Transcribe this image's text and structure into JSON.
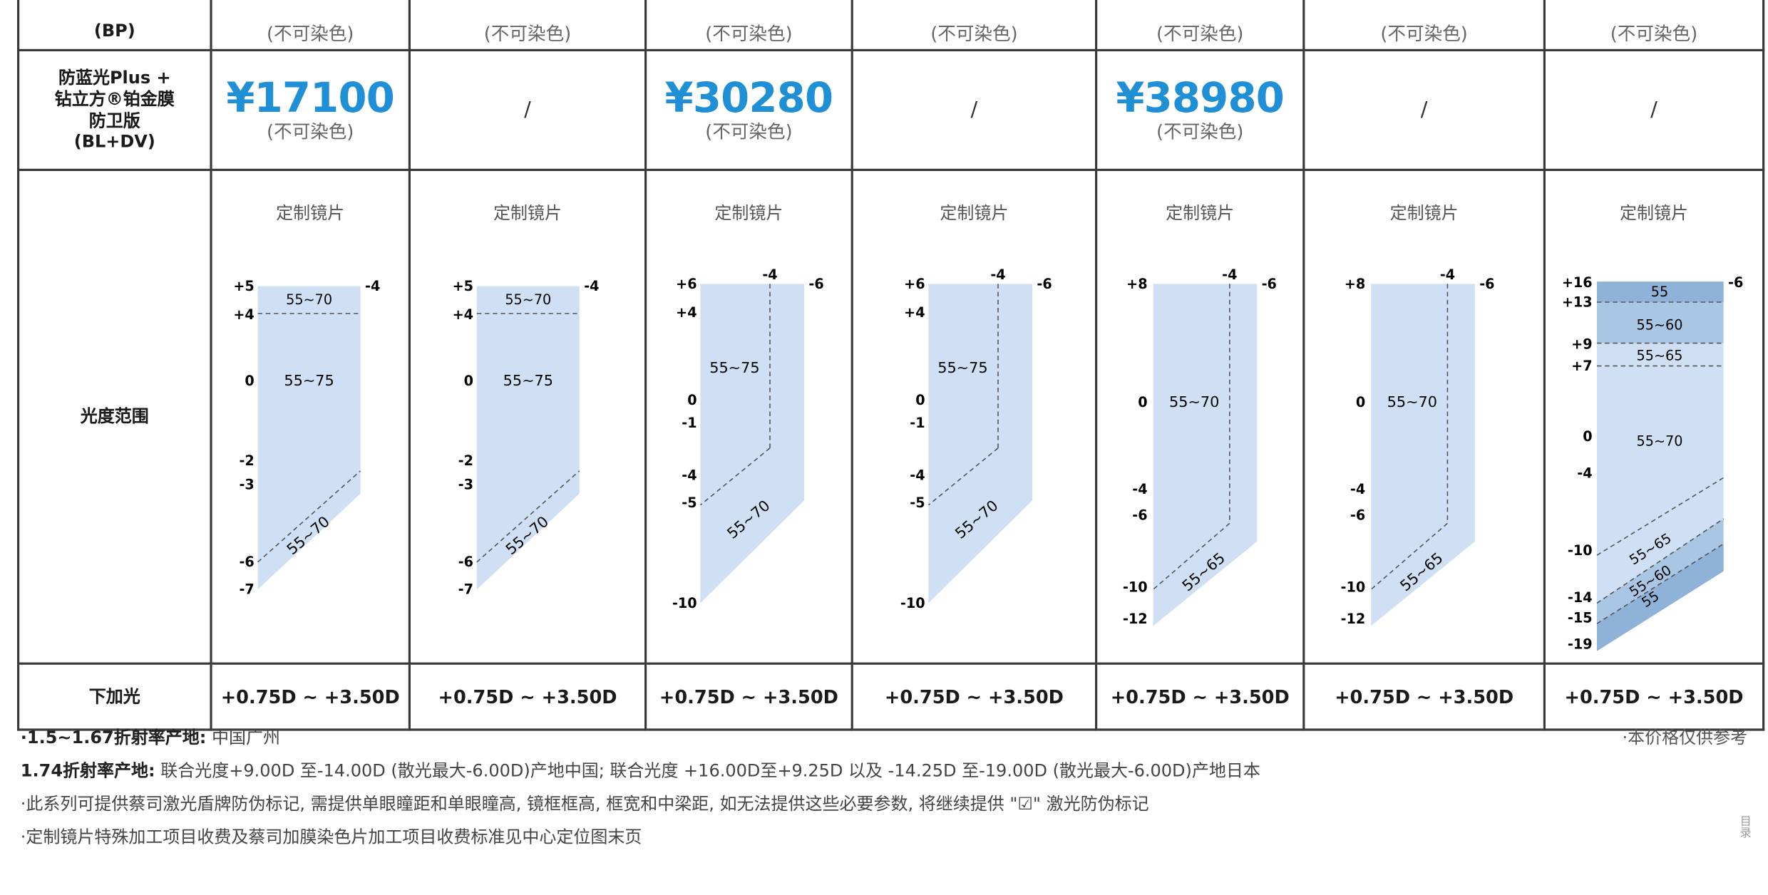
{
  "table": {
    "rows": [
      {
        "label_lines": [
          "(BP)"
        ],
        "cells": [
          {
            "type": "price",
            "note": "(不可染色)"
          },
          {
            "type": "price",
            "note": "(不可染色)"
          },
          {
            "type": "price",
            "note": "(不可染色)"
          },
          {
            "type": "price",
            "note": "(不可染色)"
          },
          {
            "type": "price",
            "note": "(不可染色)"
          },
          {
            "type": "price",
            "note": "(不可染色)"
          },
          {
            "type": "price",
            "note": "(不可染色)"
          }
        ]
      },
      {
        "label_lines": [
          "防蓝光Plus +",
          "钻立方®铂金膜",
          "防卫版",
          "(BL+DV)"
        ],
        "cells": [
          {
            "type": "price",
            "price": "¥17100",
            "note": "(不可染色)"
          },
          {
            "type": "slash",
            "text": "/"
          },
          {
            "type": "price",
            "price": "¥30280",
            "note": "(不可染色)"
          },
          {
            "type": "slash",
            "text": "/"
          },
          {
            "type": "price",
            "price": "¥38980",
            "note": "(不可染色)"
          },
          {
            "type": "slash",
            "text": "/"
          },
          {
            "type": "slash",
            "text": "/"
          }
        ]
      }
    ],
    "range_row_label": "光度范围",
    "custom_lens_label": "定制镜片",
    "add_row_label": "下加光",
    "add_values": [
      "+0.75D ~ +3.50D",
      "+0.75D ~ +3.50D",
      "+0.75D ~ +3.50D",
      "+0.75D ~ +3.50D",
      "+0.75D ~ +3.50D",
      "+0.75D ~ +3.50D",
      "+0.75D ~ +3.50D"
    ]
  },
  "range_diagrams": [
    {
      "left_ticks": [
        "+5",
        "+4",
        "0",
        "-2",
        "-3",
        "-6",
        "-7"
      ],
      "right_ticks": [
        "-4"
      ],
      "zones": [
        "55~70",
        "55~75",
        "55~70"
      ]
    },
    {
      "left_ticks": [
        "+5",
        "+4",
        "0",
        "-2",
        "-3",
        "-6",
        "-7"
      ],
      "right_ticks": [
        "-4"
      ],
      "zones": [
        "55~70",
        "55~75",
        "55~70"
      ]
    },
    {
      "left_ticks": [
        "+6",
        "+4",
        "0",
        "-1",
        "-4",
        "-5",
        "-10"
      ],
      "right_ticks": [
        "-4",
        "-6"
      ],
      "zones": [
        "55~75",
        "55~70"
      ]
    },
    {
      "left_ticks": [
        "+6",
        "+4",
        "0",
        "-1",
        "-4",
        "-5",
        "-10"
      ],
      "right_ticks": [
        "-4",
        "-6"
      ],
      "zones": [
        "55~75",
        "55~70"
      ]
    },
    {
      "left_ticks": [
        "+8",
        "0",
        "-4",
        "-6",
        "-10",
        "-12"
      ],
      "right_ticks": [
        "-4",
        "-6"
      ],
      "zones": [
        "55~70",
        "55~65"
      ]
    },
    {
      "left_ticks": [
        "+8",
        "0",
        "-4",
        "-6",
        "-10",
        "-12"
      ],
      "right_ticks": [
        "-4",
        "-6"
      ],
      "zones": [
        "55~70",
        "55~65"
      ]
    },
    {
      "left_ticks": [
        "+16",
        "+13",
        "+9",
        "+7",
        "0",
        "-4",
        "-10",
        "-14",
        "-15",
        "-19"
      ],
      "right_ticks": [
        "-6"
      ],
      "zones": [
        "55",
        "55~60",
        "55~65",
        "55~70",
        "55~65",
        "55~60",
        "55"
      ]
    }
  ],
  "colors": {
    "price_blue": "#1f8fd6",
    "zone_light": "#cfe0f4",
    "zone_mid": "#a9c6e4",
    "zone_dark": "#8fb2d8",
    "grid_line": "#3a3a3a"
  },
  "footer": {
    "line1_label": "·1.5~1.67折射率产地:",
    "line1_text": "中国广州",
    "line1_right": "·本价格仅供参考",
    "line2_label": "1.74折射率产地:",
    "line2_text": "联合光度+9.00D 至-14.00D (散光最大-6.00D)产地中国; 联合光度 +16.00D至+9.25D 以及 -14.25D 至-19.00D (散光最大-6.00D)产地日本",
    "line3": "·此系列可提供蔡司激光盾牌防伪标记, 需提供单眼瞳距和单眼瞳高, 镜框框高, 框宽和中梁距, 如无法提供这些必要参数, 将继续提供 \"☑\" 激光防伪标记",
    "line4": "·定制镜片特殊加工项目收费及蔡司加膜染色片加工项目收费标准见中心定位图末页",
    "page_num": "目录"
  }
}
